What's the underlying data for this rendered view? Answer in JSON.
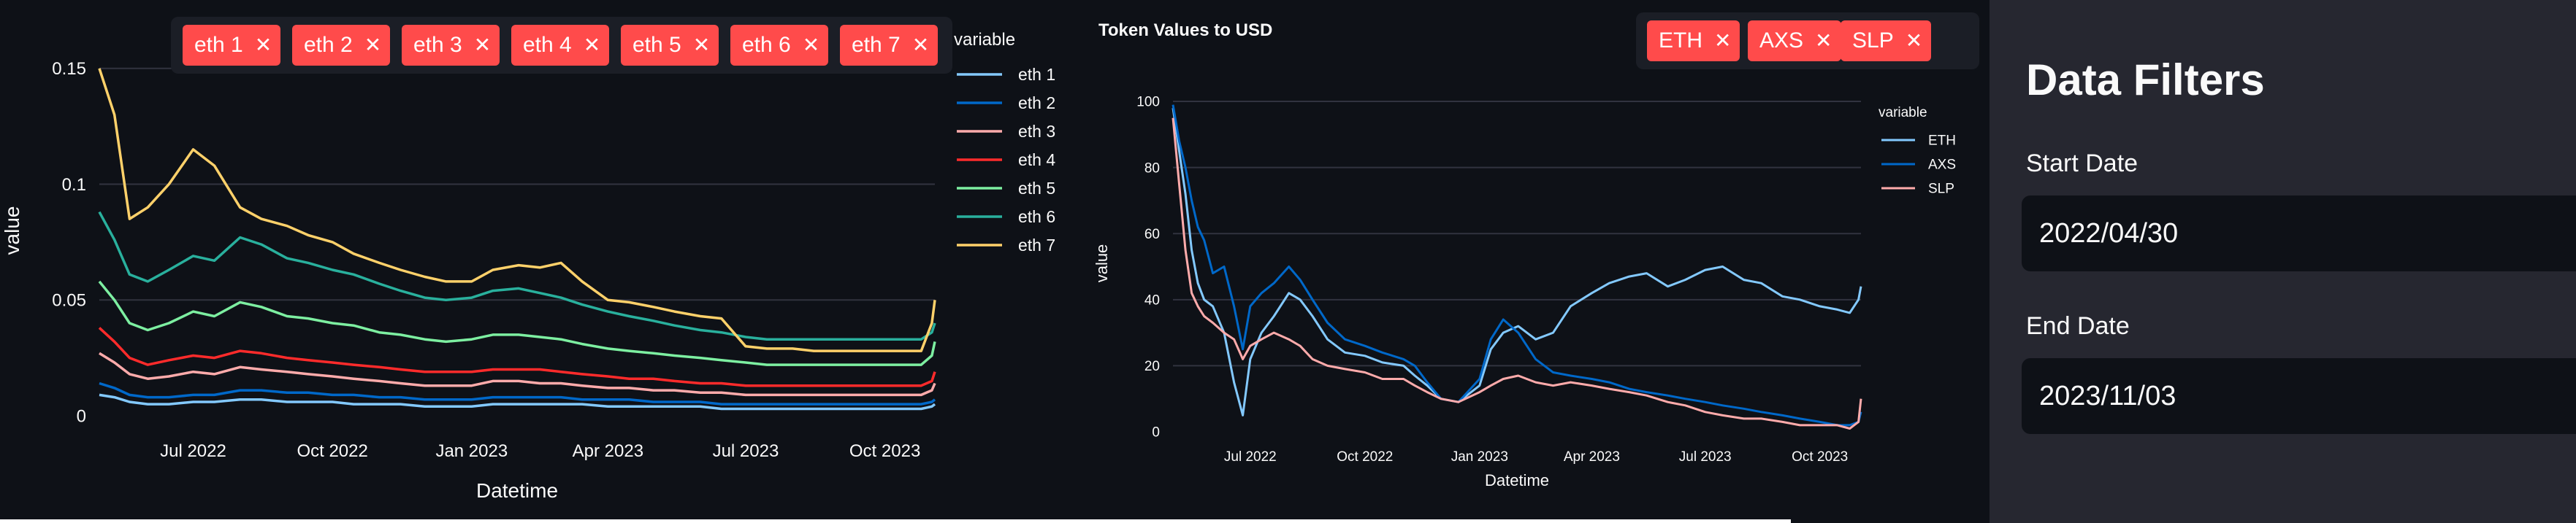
{
  "left_panel": {
    "filter_tags": [
      "eth 1",
      "eth 2",
      "eth 3",
      "eth 4",
      "eth 5",
      "eth 6",
      "eth 7"
    ],
    "tag_remove_icon": "close-icon"
  },
  "right_panel": {
    "filter_tags": [
      "ETH",
      "AXS",
      "SLP"
    ],
    "tag_remove_icon": "close-icon"
  },
  "sidebar": {
    "title": "Data Filters",
    "start_label": "Start Date",
    "start_value": "2022/04/30",
    "end_label": "End Date",
    "end_value": "2023/11/03"
  },
  "colors": {
    "eth 1": "#83c9ff",
    "eth 2": "#0068c9",
    "eth 3": "#ffabab",
    "eth 4": "#ff2b2b",
    "eth 5": "#7defa1",
    "eth 6": "#29b09d",
    "eth 7": "#ffd16a",
    "ETH": "#83c9ff",
    "AXS": "#0068c9",
    "SLP": "#ffabab",
    "tag": "#ff4b4b",
    "background": "#0e1117",
    "sidebar": "#262730"
  },
  "chart_data": [
    {
      "type": "line",
      "title": "",
      "xlabel": "Datetime",
      "ylabel": "value",
      "xlim": [
        "2022-04-30",
        "2023-11-03"
      ],
      "ylim": [
        0,
        0.16
      ],
      "x_ticks": [
        "2022-07-01",
        "2022-10-01",
        "2023-01-01",
        "2023-04-01",
        "2023-07-01",
        "2023-10-01"
      ],
      "x_tick_labels": [
        "Jul 2022",
        "Oct 2022",
        "Jan 2023",
        "Apr 2023",
        "Jul 2023",
        "Oct 2023"
      ],
      "y_ticks": [
        0,
        0.05,
        0.1,
        0.15
      ],
      "y_tick_labels": [
        "0",
        "0.05",
        "0.1",
        "0.15"
      ],
      "legend_title": "variable",
      "legend_position": "right",
      "grid": true,
      "x": [
        "2022-04-30",
        "2022-05-10",
        "2022-05-20",
        "2022-06-01",
        "2022-06-15",
        "2022-07-01",
        "2022-07-15",
        "2022-08-01",
        "2022-08-15",
        "2022-09-01",
        "2022-09-15",
        "2022-10-01",
        "2022-10-15",
        "2022-11-01",
        "2022-11-15",
        "2022-12-01",
        "2022-12-15",
        "2023-01-01",
        "2023-01-15",
        "2023-02-01",
        "2023-02-15",
        "2023-03-01",
        "2023-03-15",
        "2023-04-01",
        "2023-04-15",
        "2023-05-01",
        "2023-05-15",
        "2023-06-01",
        "2023-06-15",
        "2023-07-01",
        "2023-07-15",
        "2023-08-01",
        "2023-08-15",
        "2023-09-01",
        "2023-09-15",
        "2023-10-01",
        "2023-10-15",
        "2023-10-25",
        "2023-11-01",
        "2023-11-03"
      ],
      "series": [
        {
          "name": "eth 1",
          "values": [
            0.009,
            0.008,
            0.006,
            0.005,
            0.005,
            0.006,
            0.006,
            0.007,
            0.007,
            0.006,
            0.006,
            0.006,
            0.005,
            0.005,
            0.005,
            0.004,
            0.004,
            0.004,
            0.005,
            0.005,
            0.005,
            0.005,
            0.005,
            0.004,
            0.004,
            0.004,
            0.004,
            0.004,
            0.003,
            0.003,
            0.003,
            0.003,
            0.003,
            0.003,
            0.003,
            0.003,
            0.003,
            0.003,
            0.004,
            0.005
          ]
        },
        {
          "name": "eth 2",
          "values": [
            0.014,
            0.012,
            0.009,
            0.008,
            0.008,
            0.009,
            0.009,
            0.011,
            0.011,
            0.01,
            0.01,
            0.009,
            0.009,
            0.008,
            0.008,
            0.007,
            0.007,
            0.007,
            0.008,
            0.008,
            0.008,
            0.008,
            0.007,
            0.007,
            0.007,
            0.006,
            0.006,
            0.006,
            0.005,
            0.005,
            0.005,
            0.005,
            0.005,
            0.005,
            0.005,
            0.005,
            0.005,
            0.005,
            0.006,
            0.007
          ]
        },
        {
          "name": "eth 3",
          "values": [
            0.027,
            0.023,
            0.018,
            0.016,
            0.017,
            0.019,
            0.018,
            0.021,
            0.02,
            0.019,
            0.018,
            0.017,
            0.016,
            0.015,
            0.014,
            0.013,
            0.013,
            0.013,
            0.015,
            0.015,
            0.014,
            0.014,
            0.013,
            0.012,
            0.012,
            0.011,
            0.011,
            0.01,
            0.01,
            0.009,
            0.009,
            0.009,
            0.009,
            0.009,
            0.009,
            0.009,
            0.009,
            0.009,
            0.011,
            0.014
          ]
        },
        {
          "name": "eth 4",
          "values": [
            0.038,
            0.032,
            0.025,
            0.022,
            0.024,
            0.026,
            0.025,
            0.028,
            0.027,
            0.025,
            0.024,
            0.023,
            0.022,
            0.021,
            0.02,
            0.019,
            0.019,
            0.019,
            0.02,
            0.02,
            0.02,
            0.019,
            0.018,
            0.017,
            0.016,
            0.016,
            0.015,
            0.014,
            0.014,
            0.013,
            0.013,
            0.013,
            0.013,
            0.013,
            0.013,
            0.013,
            0.013,
            0.013,
            0.015,
            0.019
          ]
        },
        {
          "name": "eth 5",
          "values": [
            0.058,
            0.05,
            0.04,
            0.037,
            0.04,
            0.045,
            0.043,
            0.049,
            0.047,
            0.043,
            0.042,
            0.04,
            0.039,
            0.036,
            0.035,
            0.033,
            0.032,
            0.033,
            0.035,
            0.035,
            0.034,
            0.033,
            0.031,
            0.029,
            0.028,
            0.027,
            0.026,
            0.025,
            0.024,
            0.023,
            0.022,
            0.022,
            0.022,
            0.022,
            0.022,
            0.022,
            0.022,
            0.022,
            0.026,
            0.032
          ]
        },
        {
          "name": "eth 6",
          "values": [
            0.088,
            0.076,
            0.061,
            0.058,
            0.063,
            0.069,
            0.067,
            0.077,
            0.074,
            0.068,
            0.066,
            0.063,
            0.061,
            0.057,
            0.054,
            0.051,
            0.05,
            0.051,
            0.054,
            0.055,
            0.053,
            0.051,
            0.048,
            0.045,
            0.043,
            0.041,
            0.039,
            0.037,
            0.036,
            0.034,
            0.033,
            0.033,
            0.033,
            0.033,
            0.033,
            0.033,
            0.033,
            0.033,
            0.036,
            0.04
          ]
        },
        {
          "name": "eth 7",
          "values": [
            0.15,
            0.13,
            0.085,
            0.09,
            0.1,
            0.115,
            0.108,
            0.09,
            0.085,
            0.082,
            0.078,
            0.075,
            0.07,
            0.066,
            0.063,
            0.06,
            0.058,
            0.058,
            0.063,
            0.065,
            0.064,
            0.066,
            0.058,
            0.05,
            0.049,
            0.047,
            0.045,
            0.043,
            0.042,
            0.03,
            0.029,
            0.029,
            0.028,
            0.028,
            0.028,
            0.028,
            0.028,
            0.028,
            0.04,
            0.05
          ]
        }
      ]
    },
    {
      "type": "line",
      "title": "Token Values to USD",
      "xlabel": "Datetime",
      "ylabel": "value",
      "xlim": [
        "2022-04-30",
        "2023-11-03"
      ],
      "ylim": [
        0,
        102
      ],
      "x_ticks": [
        "2022-07-01",
        "2022-10-01",
        "2023-01-01",
        "2023-04-01",
        "2023-07-01",
        "2023-10-01"
      ],
      "x_tick_labels": [
        "Jul 2022",
        "Oct 2022",
        "Jan 2023",
        "Apr 2023",
        "Jul 2023",
        "Oct 2023"
      ],
      "y_ticks": [
        0,
        20,
        40,
        60,
        80,
        100
      ],
      "y_tick_labels": [
        "0",
        "20",
        "40",
        "60",
        "80",
        "100"
      ],
      "legend_title": "variable",
      "legend_position": "right",
      "grid": true,
      "x": [
        "2022-04-30",
        "2022-05-05",
        "2022-05-10",
        "2022-05-15",
        "2022-05-20",
        "2022-05-25",
        "2022-06-01",
        "2022-06-10",
        "2022-06-18",
        "2022-06-25",
        "2022-07-01",
        "2022-07-10",
        "2022-07-20",
        "2022-08-01",
        "2022-08-10",
        "2022-08-20",
        "2022-09-01",
        "2022-09-15",
        "2022-10-01",
        "2022-10-15",
        "2022-11-01",
        "2022-11-10",
        "2022-11-20",
        "2022-12-01",
        "2022-12-15",
        "2023-01-01",
        "2023-01-10",
        "2023-01-20",
        "2023-02-01",
        "2023-02-15",
        "2023-03-01",
        "2023-03-15",
        "2023-04-01",
        "2023-04-15",
        "2023-05-01",
        "2023-05-15",
        "2023-06-01",
        "2023-06-15",
        "2023-07-01",
        "2023-07-15",
        "2023-08-01",
        "2023-08-15",
        "2023-09-01",
        "2023-09-15",
        "2023-10-01",
        "2023-10-15",
        "2023-10-25",
        "2023-11-01",
        "2023-11-03"
      ],
      "series": [
        {
          "name": "ETH",
          "values": [
            98,
            85,
            72,
            55,
            45,
            40,
            38,
            30,
            15,
            5,
            22,
            30,
            35,
            42,
            40,
            35,
            28,
            24,
            23,
            21,
            20,
            17,
            14,
            10,
            9,
            14,
            25,
            30,
            32,
            28,
            30,
            38,
            42,
            45,
            47,
            48,
            44,
            46,
            49,
            50,
            46,
            45,
            41,
            40,
            38,
            37,
            36,
            40,
            44
          ]
        },
        {
          "name": "AXS",
          "values": [
            99,
            88,
            80,
            70,
            62,
            58,
            48,
            50,
            38,
            25,
            38,
            42,
            45,
            50,
            46,
            40,
            33,
            28,
            26,
            24,
            22,
            20,
            15,
            10,
            9,
            16,
            28,
            34,
            30,
            22,
            18,
            17,
            16,
            15,
            13,
            12,
            11,
            10,
            9,
            8,
            7,
            6,
            5,
            4,
            3,
            2,
            2,
            3,
            6
          ]
        },
        {
          "name": "SLP",
          "values": [
            95,
            75,
            55,
            42,
            38,
            35,
            33,
            30,
            28,
            22,
            26,
            28,
            30,
            28,
            26,
            22,
            20,
            19,
            18,
            16,
            16,
            14,
            12,
            10,
            9,
            12,
            14,
            16,
            17,
            15,
            14,
            15,
            14,
            13,
            12,
            11,
            9,
            8,
            6,
            5,
            4,
            4,
            3,
            2,
            2,
            2,
            1,
            3,
            10
          ]
        }
      ]
    }
  ]
}
